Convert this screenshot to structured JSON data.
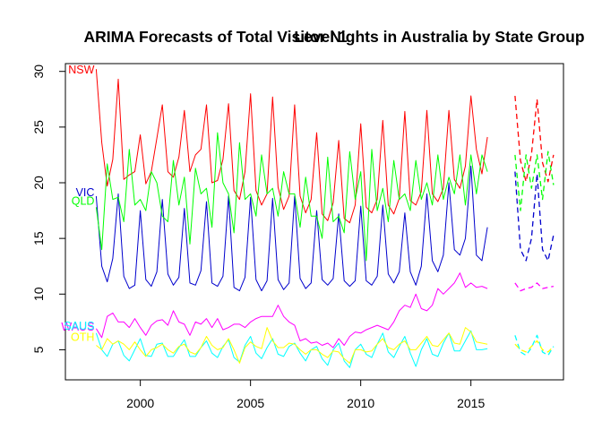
{
  "chart_data": {
    "type": "line",
    "title": "ARIMA Forecasts of Total Visitor Nights in Australia by State Group",
    "title_overlay": "Level 1",
    "xlabel": "",
    "ylabel": "",
    "xlim": [
      1996.6,
      2019.2
    ],
    "ylim": [
      2.3,
      30.7
    ],
    "x_ticks": [
      2000,
      2005,
      2010,
      2015
    ],
    "x_tick_labels": [
      "2000",
      "2005",
      "2010",
      "2015"
    ],
    "y_ticks": [
      5,
      10,
      15,
      20,
      25,
      30
    ],
    "y_tick_labels": [
      "5",
      "10",
      "15",
      "20",
      "25",
      "30"
    ],
    "grid": false,
    "legend": "inline labels at left",
    "history_start": 1998.0,
    "forecast_start": 2017.0,
    "frequency": 4,
    "series": [
      {
        "name": "NSW",
        "color": "#ff0000",
        "history": [
          30.2,
          23.6,
          19.7,
          22.1,
          29.3,
          20.3,
          20.7,
          21.0,
          24.3,
          19.9,
          21.0,
          24.0,
          27.0,
          21.0,
          20.5,
          22.3,
          26.5,
          21.0,
          22.5,
          23.0,
          27.0,
          20.0,
          20.2,
          22.1,
          27.1,
          19.3,
          18.5,
          21.0,
          28.0,
          19.3,
          18.0,
          19.0,
          27.7,
          19.6,
          17.6,
          18.8,
          27.0,
          18.8,
          17.3,
          18.5,
          24.5,
          17.2,
          16.6,
          18.2,
          23.8,
          16.8,
          16.4,
          18.0,
          25.3,
          17.8,
          17.3,
          18.5,
          25.6,
          18.0,
          17.2,
          18.6,
          26.4,
          18.4,
          18.0,
          19.2,
          26.5,
          19.0,
          18.3,
          19.5,
          26.5,
          20.3,
          19.5,
          21.5,
          27.8,
          23.0,
          20.8,
          24.1
        ],
        "forecast": [
          27.8,
          22.0,
          20.1,
          22.6,
          27.5,
          21.8,
          20.1,
          22.5
        ]
      },
      {
        "name": "VIC",
        "color": "#0000cd",
        "history": [
          18.8,
          12.5,
          11.1,
          13.2,
          19.0,
          11.6,
          10.5,
          10.8,
          17.5,
          11.3,
          10.7,
          12.0,
          18.5,
          11.8,
          10.8,
          11.5,
          17.7,
          11.0,
          10.8,
          12.1,
          18.3,
          11.0,
          10.7,
          11.6,
          18.8,
          10.6,
          10.3,
          11.5,
          18.7,
          11.3,
          10.3,
          11.2,
          18.6,
          11.3,
          10.4,
          11.0,
          18.8,
          11.4,
          10.5,
          11.0,
          17.5,
          11.3,
          10.8,
          11.4,
          17.2,
          11.2,
          10.7,
          11.2,
          17.9,
          11.2,
          10.8,
          11.6,
          18.0,
          11.8,
          11.0,
          12.0,
          17.3,
          12.0,
          10.8,
          12.5,
          19.0,
          13.0,
          12.0,
          13.5,
          20.0,
          14.0,
          13.5,
          15.0,
          21.5,
          13.5,
          13.0,
          16.0
        ],
        "forecast": [
          21.0,
          14.0,
          13.0,
          15.0,
          20.8,
          14.0,
          13.0,
          15.3
        ]
      },
      {
        "name": "QLD",
        "color": "#00ff00",
        "history": [
          17.8,
          14.0,
          21.7,
          18.5,
          18.7,
          16.5,
          23.0,
          18.0,
          18.5,
          17.5,
          21.0,
          20.0,
          17.0,
          16.5,
          22.0,
          18.0,
          20.5,
          14.5,
          21.3,
          19.0,
          19.5,
          16.0,
          24.5,
          20.0,
          19.0,
          15.5,
          23.6,
          18.5,
          19.0,
          17.0,
          22.5,
          19.0,
          19.5,
          17.0,
          21.0,
          19.0,
          19.0,
          16.0,
          20.5,
          17.0,
          17.0,
          15.0,
          22.3,
          16.5,
          17.0,
          15.5,
          22.8,
          18.5,
          21.0,
          13.0,
          23.0,
          17.5,
          19.5,
          16.5,
          22.0,
          18.5,
          19.0,
          17.5,
          22.0,
          18.5,
          20.0,
          18.0,
          22.5,
          18.5,
          20.5,
          19.0,
          22.5,
          18.0,
          22.5,
          19.0,
          22.5,
          21.0
        ],
        "forecast": [
          22.5,
          17.5,
          22.5,
          19.5,
          22.5,
          18.5,
          22.8,
          19.8
        ]
      },
      {
        "name": "WAUS",
        "color": "#ff00ff",
        "history": [
          6.9,
          6.1,
          8.0,
          8.3,
          7.5,
          7.5,
          7.0,
          7.8,
          7.0,
          6.3,
          7.2,
          7.6,
          7.7,
          7.2,
          8.5,
          7.5,
          7.3,
          6.3,
          7.5,
          7.3,
          7.8,
          7.0,
          7.8,
          6.8,
          7.0,
          7.3,
          7.3,
          7.0,
          7.5,
          7.8,
          8.0,
          8.0,
          8.0,
          9.0,
          8.0,
          7.5,
          7.2,
          5.8,
          6.0,
          5.6,
          5.7,
          5.4,
          5.6,
          5.2,
          6.0,
          5.4,
          6.2,
          6.6,
          6.5,
          6.8,
          7.0,
          7.2,
          7.0,
          6.8,
          7.5,
          8.5,
          9.0,
          8.8,
          10.0,
          8.7,
          8.5,
          9.0,
          10.5,
          10.0,
          10.5,
          11.0,
          11.9,
          10.6,
          11.0,
          10.6,
          10.7,
          10.5
        ],
        "forecast": [
          11.0,
          10.3,
          10.5,
          10.6,
          11.0,
          10.5,
          10.6,
          10.7
        ]
      },
      {
        "name": "SAUS",
        "color": "#00ffff",
        "history": [
          6.5,
          5.0,
          4.4,
          5.5,
          5.8,
          4.5,
          4.0,
          5.0,
          6.0,
          4.5,
          4.4,
          5.5,
          5.6,
          4.4,
          4.4,
          5.2,
          5.9,
          4.4,
          4.4,
          5.2,
          5.8,
          4.7,
          4.3,
          5.3,
          5.9,
          4.3,
          3.9,
          5.4,
          6.2,
          4.7,
          4.2,
          5.2,
          6.0,
          4.6,
          4.4,
          5.3,
          5.6,
          4.7,
          4.0,
          5.0,
          5.3,
          4.2,
          3.6,
          5.0,
          5.6,
          4.0,
          3.4,
          5.0,
          5.5,
          4.6,
          4.3,
          5.5,
          6.5,
          4.8,
          4.3,
          5.3,
          6.2,
          4.7,
          3.5,
          5.0,
          6.0,
          4.6,
          4.4,
          5.6,
          6.5,
          4.9,
          4.9,
          5.8,
          6.7,
          5.0,
          5.0,
          5.1
        ],
        "forecast": [
          6.3,
          4.8,
          4.5,
          5.2,
          6.3,
          4.8,
          4.5,
          5.3
        ]
      },
      {
        "name": "OTH",
        "color": "#ffff00",
        "history": [
          5.4,
          5.0,
          6.0,
          5.5,
          5.8,
          5.5,
          5.0,
          5.7,
          5.0,
          4.4,
          5.0,
          5.2,
          5.5,
          5.0,
          4.7,
          5.3,
          5.5,
          4.8,
          4.6,
          5.2,
          6.2,
          5.4,
          5.0,
          5.2,
          6.0,
          5.0,
          3.8,
          5.2,
          5.7,
          5.3,
          5.1,
          7.0,
          5.8,
          5.2,
          5.2,
          5.6,
          5.5,
          5.0,
          4.6,
          5.0,
          5.0,
          4.6,
          4.3,
          4.9,
          4.8,
          4.2,
          3.8,
          5.0,
          5.0,
          4.8,
          4.9,
          5.5,
          6.0,
          5.2,
          5.0,
          5.5,
          5.8,
          5.0,
          5.0,
          5.6,
          6.2,
          5.4,
          5.3,
          5.9,
          6.5,
          5.6,
          5.5,
          7.0,
          6.6,
          5.7,
          5.6,
          5.5
        ],
        "forecast": [
          5.5,
          5.0,
          4.8,
          5.3,
          5.8,
          5.0,
          4.8,
          5.3
        ]
      }
    ]
  }
}
